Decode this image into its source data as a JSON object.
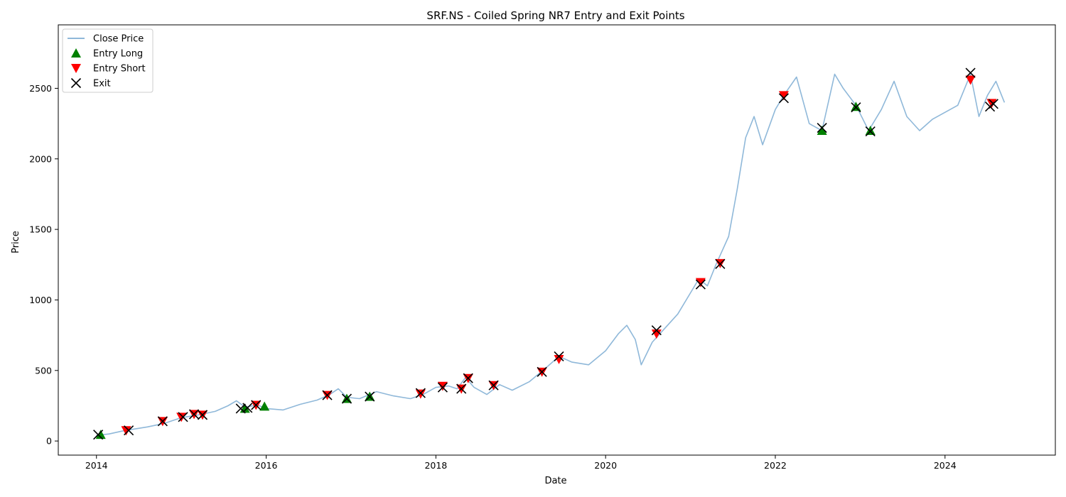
{
  "chart_data": {
    "type": "line",
    "title": "SRF.NS - Coiled Spring NR7 Entry and Exit Points",
    "xlabel": "Date",
    "ylabel": "Price",
    "xlim": [
      2013.55,
      2025.3
    ],
    "ylim": [
      -100,
      2950
    ],
    "x_ticks": [
      2014,
      2016,
      2018,
      2020,
      2022,
      2024
    ],
    "y_ticks": [
      0,
      500,
      1000,
      1500,
      2000,
      2500
    ],
    "grid": false,
    "legend_position": "top-left",
    "colors": {
      "close": "#8fb8d9",
      "entry_long": "#008000",
      "entry_short": "#ff0000",
      "exit": "#000000"
    },
    "series": [
      {
        "name": "Close Price",
        "kind": "line",
        "points": [
          [
            2014.0,
            40
          ],
          [
            2014.15,
            50
          ],
          [
            2014.3,
            70
          ],
          [
            2014.45,
            85
          ],
          [
            2014.6,
            100
          ],
          [
            2014.8,
            125
          ],
          [
            2015.0,
            165
          ],
          [
            2015.2,
            185
          ],
          [
            2015.4,
            210
          ],
          [
            2015.55,
            250
          ],
          [
            2015.65,
            285
          ],
          [
            2015.75,
            240
          ],
          [
            2015.9,
            255
          ],
          [
            2016.0,
            230
          ],
          [
            2016.2,
            220
          ],
          [
            2016.4,
            260
          ],
          [
            2016.6,
            290
          ],
          [
            2016.75,
            330
          ],
          [
            2016.85,
            370
          ],
          [
            2016.95,
            310
          ],
          [
            2017.1,
            300
          ],
          [
            2017.3,
            350
          ],
          [
            2017.5,
            320
          ],
          [
            2017.7,
            300
          ],
          [
            2017.85,
            330
          ],
          [
            2018.0,
            380
          ],
          [
            2018.15,
            390
          ],
          [
            2018.25,
            370
          ],
          [
            2018.35,
            450
          ],
          [
            2018.45,
            380
          ],
          [
            2018.6,
            330
          ],
          [
            2018.75,
            400
          ],
          [
            2018.9,
            360
          ],
          [
            2019.1,
            420
          ],
          [
            2019.3,
            520
          ],
          [
            2019.45,
            600
          ],
          [
            2019.6,
            560
          ],
          [
            2019.8,
            540
          ],
          [
            2020.0,
            640
          ],
          [
            2020.15,
            760
          ],
          [
            2020.25,
            820
          ],
          [
            2020.35,
            720
          ],
          [
            2020.42,
            540
          ],
          [
            2020.55,
            700
          ],
          [
            2020.7,
            800
          ],
          [
            2020.85,
            900
          ],
          [
            2021.0,
            1050
          ],
          [
            2021.1,
            1150
          ],
          [
            2021.2,
            1100
          ],
          [
            2021.3,
            1250
          ],
          [
            2021.45,
            1450
          ],
          [
            2021.55,
            1780
          ],
          [
            2021.65,
            2150
          ],
          [
            2021.75,
            2300
          ],
          [
            2021.85,
            2100
          ],
          [
            2022.0,
            2350
          ],
          [
            2022.1,
            2450
          ],
          [
            2022.25,
            2580
          ],
          [
            2022.4,
            2250
          ],
          [
            2022.55,
            2200
          ],
          [
            2022.7,
            2600
          ],
          [
            2022.8,
            2500
          ],
          [
            2022.95,
            2380
          ],
          [
            2023.1,
            2200
          ],
          [
            2023.25,
            2350
          ],
          [
            2023.4,
            2550
          ],
          [
            2023.55,
            2300
          ],
          [
            2023.7,
            2200
          ],
          [
            2023.85,
            2280
          ],
          [
            2024.0,
            2330
          ],
          [
            2024.15,
            2380
          ],
          [
            2024.3,
            2600
          ],
          [
            2024.4,
            2300
          ],
          [
            2024.5,
            2450
          ],
          [
            2024.6,
            2550
          ],
          [
            2024.7,
            2400
          ]
        ]
      },
      {
        "name": "Entry Long",
        "kind": "marker",
        "marker": "triangle-up",
        "points": [
          [
            2014.05,
            45
          ],
          [
            2015.75,
            230
          ],
          [
            2015.98,
            245
          ],
          [
            2016.95,
            300
          ],
          [
            2017.22,
            315
          ],
          [
            2022.55,
            2200
          ],
          [
            2022.95,
            2370
          ],
          [
            2023.12,
            2200
          ]
        ]
      },
      {
        "name": "Entry Short",
        "kind": "marker",
        "marker": "triangle-down",
        "points": [
          [
            2014.35,
            75
          ],
          [
            2014.78,
            140
          ],
          [
            2015.0,
            170
          ],
          [
            2015.15,
            190
          ],
          [
            2015.25,
            185
          ],
          [
            2015.88,
            255
          ],
          [
            2016.72,
            325
          ],
          [
            2017.82,
            335
          ],
          [
            2018.08,
            390
          ],
          [
            2018.3,
            370
          ],
          [
            2018.38,
            445
          ],
          [
            2018.68,
            395
          ],
          [
            2019.25,
            490
          ],
          [
            2019.45,
            580
          ],
          [
            2020.6,
            760
          ],
          [
            2021.12,
            1125
          ],
          [
            2021.35,
            1260
          ],
          [
            2022.1,
            2450
          ],
          [
            2024.3,
            2560
          ],
          [
            2024.55,
            2395
          ]
        ]
      },
      {
        "name": "Exit",
        "kind": "marker",
        "marker": "x",
        "points": [
          [
            2014.02,
            45
          ],
          [
            2014.38,
            75
          ],
          [
            2014.78,
            140
          ],
          [
            2015.02,
            170
          ],
          [
            2015.15,
            190
          ],
          [
            2015.25,
            185
          ],
          [
            2015.7,
            230
          ],
          [
            2015.78,
            235
          ],
          [
            2015.88,
            255
          ],
          [
            2016.72,
            325
          ],
          [
            2016.95,
            300
          ],
          [
            2017.22,
            315
          ],
          [
            2017.82,
            340
          ],
          [
            2018.08,
            380
          ],
          [
            2018.3,
            370
          ],
          [
            2018.38,
            445
          ],
          [
            2018.68,
            395
          ],
          [
            2019.25,
            490
          ],
          [
            2019.45,
            600
          ],
          [
            2020.6,
            785
          ],
          [
            2021.12,
            1110
          ],
          [
            2021.35,
            1255
          ],
          [
            2022.1,
            2430
          ],
          [
            2022.55,
            2220
          ],
          [
            2022.95,
            2365
          ],
          [
            2023.12,
            2195
          ],
          [
            2024.3,
            2610
          ],
          [
            2024.53,
            2370
          ],
          [
            2024.57,
            2390
          ]
        ]
      }
    ]
  }
}
